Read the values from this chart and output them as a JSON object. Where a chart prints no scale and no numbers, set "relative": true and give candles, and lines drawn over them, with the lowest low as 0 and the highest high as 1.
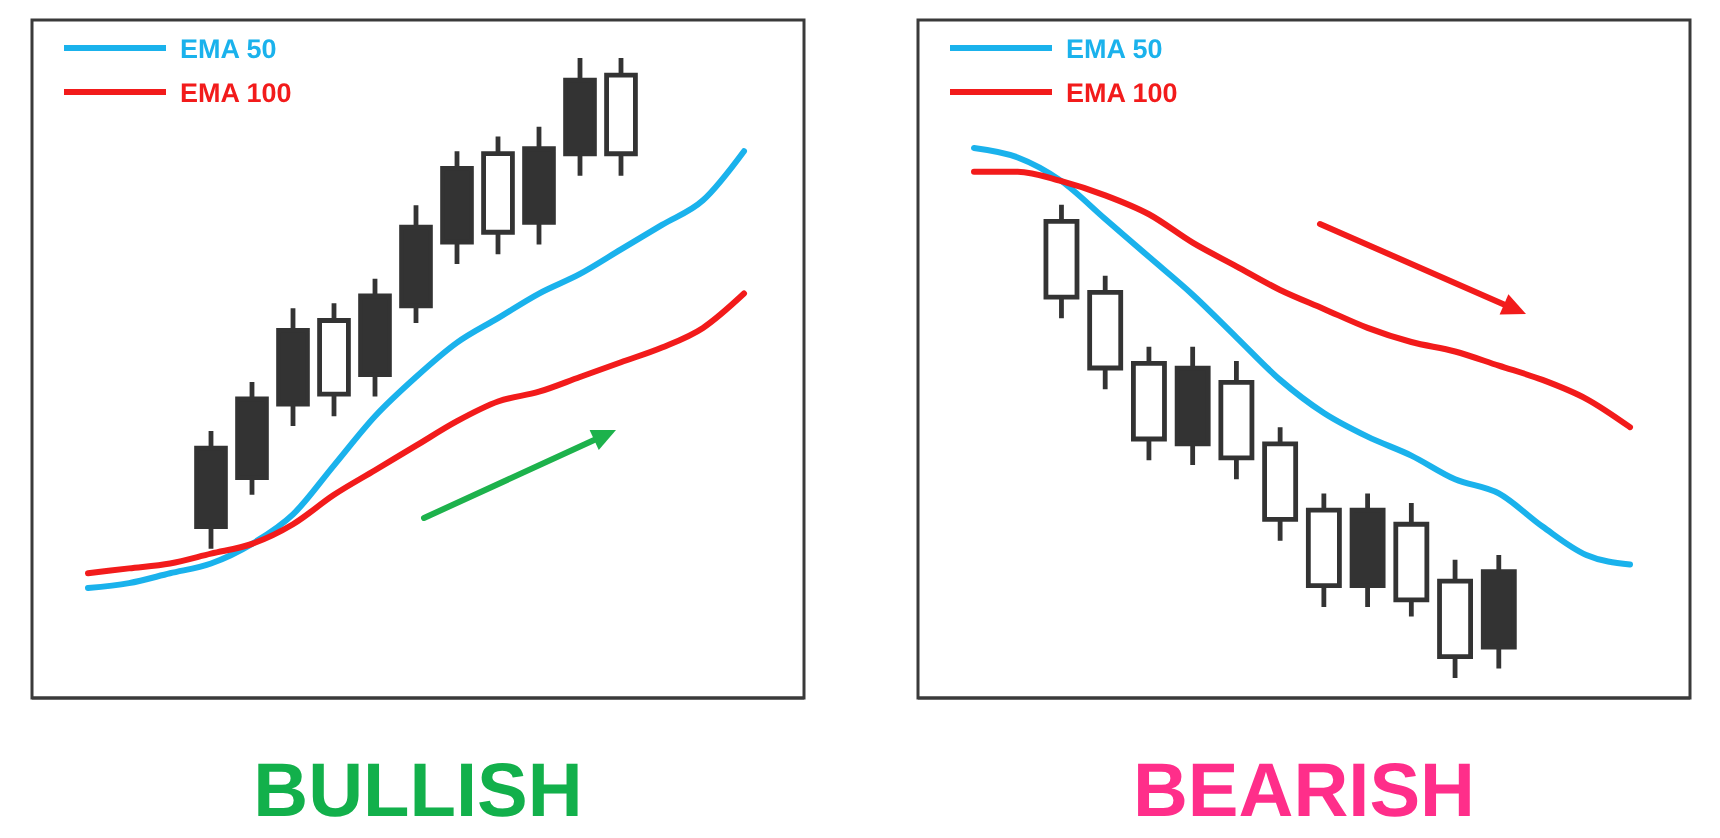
{
  "chart_data": [
    {
      "type": "candlestick",
      "title": "BULLISH",
      "relative": true,
      "legend": "top left",
      "color": "#333333",
      "categories": [
        null,
        null,
        null,
        null,
        null,
        null,
        null,
        null,
        null,
        null,
        null,
        null,
        null,
        null,
        null,
        null,
        null
      ],
      "ohlc": [
        null,
        null,
        null,
        [
          0.04,
          0.24,
          0,
          0.21
        ],
        [
          0.14,
          0.34,
          0.11,
          0.31
        ],
        [
          0.29,
          0.49,
          0.25,
          0.45
        ],
        [
          0.47,
          0.5,
          0.27,
          0.31
        ],
        [
          0.35,
          0.55,
          0.31,
          0.52
        ],
        [
          0.49,
          0.7,
          0.46,
          0.66
        ],
        [
          0.62,
          0.81,
          0.58,
          0.78
        ],
        [
          0.81,
          0.84,
          0.6,
          0.64
        ],
        [
          0.66,
          0.86,
          0.62,
          0.82
        ],
        [
          0.8,
          1.0,
          0.76,
          0.96
        ],
        [
          0.97,
          1.0,
          0.76,
          0.8
        ],
        null,
        null,
        null
      ],
      "series": [
        {
          "type": "line",
          "name": "EMA 50",
          "color": "#1ab2ec",
          "values": [
            -0.08,
            -0.07,
            -0.05,
            -0.03,
            0.01,
            0.07,
            0.17,
            0.27,
            0.35,
            0.42,
            0.47,
            0.52,
            0.56,
            0.61,
            0.66,
            0.71,
            0.81
          ]
        },
        {
          "type": "line",
          "name": "EMA 100",
          "color": "#f21b1b",
          "values": [
            -0.05,
            -0.04,
            -0.03,
            -0.01,
            0.01,
            0.05,
            0.11,
            0.16,
            0.21,
            0.26,
            0.3,
            0.32,
            0.35,
            0.38,
            0.41,
            0.45,
            0.52
          ]
        }
      ]
    },
    {
      "type": "candlestick",
      "title": "BEARISH",
      "relative": true,
      "legend": "top left",
      "color": "#333333",
      "categories": [
        null,
        null,
        null,
        null,
        null,
        null,
        null,
        null,
        null,
        null,
        null,
        null,
        null,
        null,
        null,
        null
      ],
      "ohlc": [
        null,
        null,
        [
          0.97,
          1.0,
          0.76,
          0.8
        ],
        [
          0.82,
          0.85,
          0.61,
          0.65
        ],
        [
          0.67,
          0.7,
          0.46,
          0.5
        ],
        [
          0.49,
          0.7,
          0.45,
          0.66
        ],
        [
          0.63,
          0.67,
          0.42,
          0.46
        ],
        [
          0.5,
          0.53,
          0.29,
          0.33
        ],
        [
          0.36,
          0.39,
          0.15,
          0.19
        ],
        [
          0.19,
          0.39,
          0.15,
          0.36
        ],
        [
          0.33,
          0.37,
          0.13,
          0.16
        ],
        [
          0.21,
          0.25,
          0,
          0.04
        ],
        [
          0.06,
          0.26,
          0.02,
          0.23
        ],
        null,
        null,
        null
      ],
      "series": [
        {
          "type": "line",
          "name": "EMA 50",
          "color": "#1ab2ec",
          "values": [
            1.12,
            1.1,
            1.05,
            0.97,
            0.89,
            0.81,
            0.72,
            0.63,
            0.56,
            0.51,
            0.47,
            0.42,
            0.39,
            0.32,
            0.26,
            0.24
          ]
        },
        {
          "type": "line",
          "name": "EMA 100",
          "color": "#f21b1b",
          "values": [
            1.07,
            1.07,
            1.05,
            1.02,
            0.98,
            0.92,
            0.87,
            0.82,
            0.78,
            0.74,
            0.71,
            0.69,
            0.66,
            0.63,
            0.59,
            0.53
          ]
        }
      ]
    }
  ]
}
